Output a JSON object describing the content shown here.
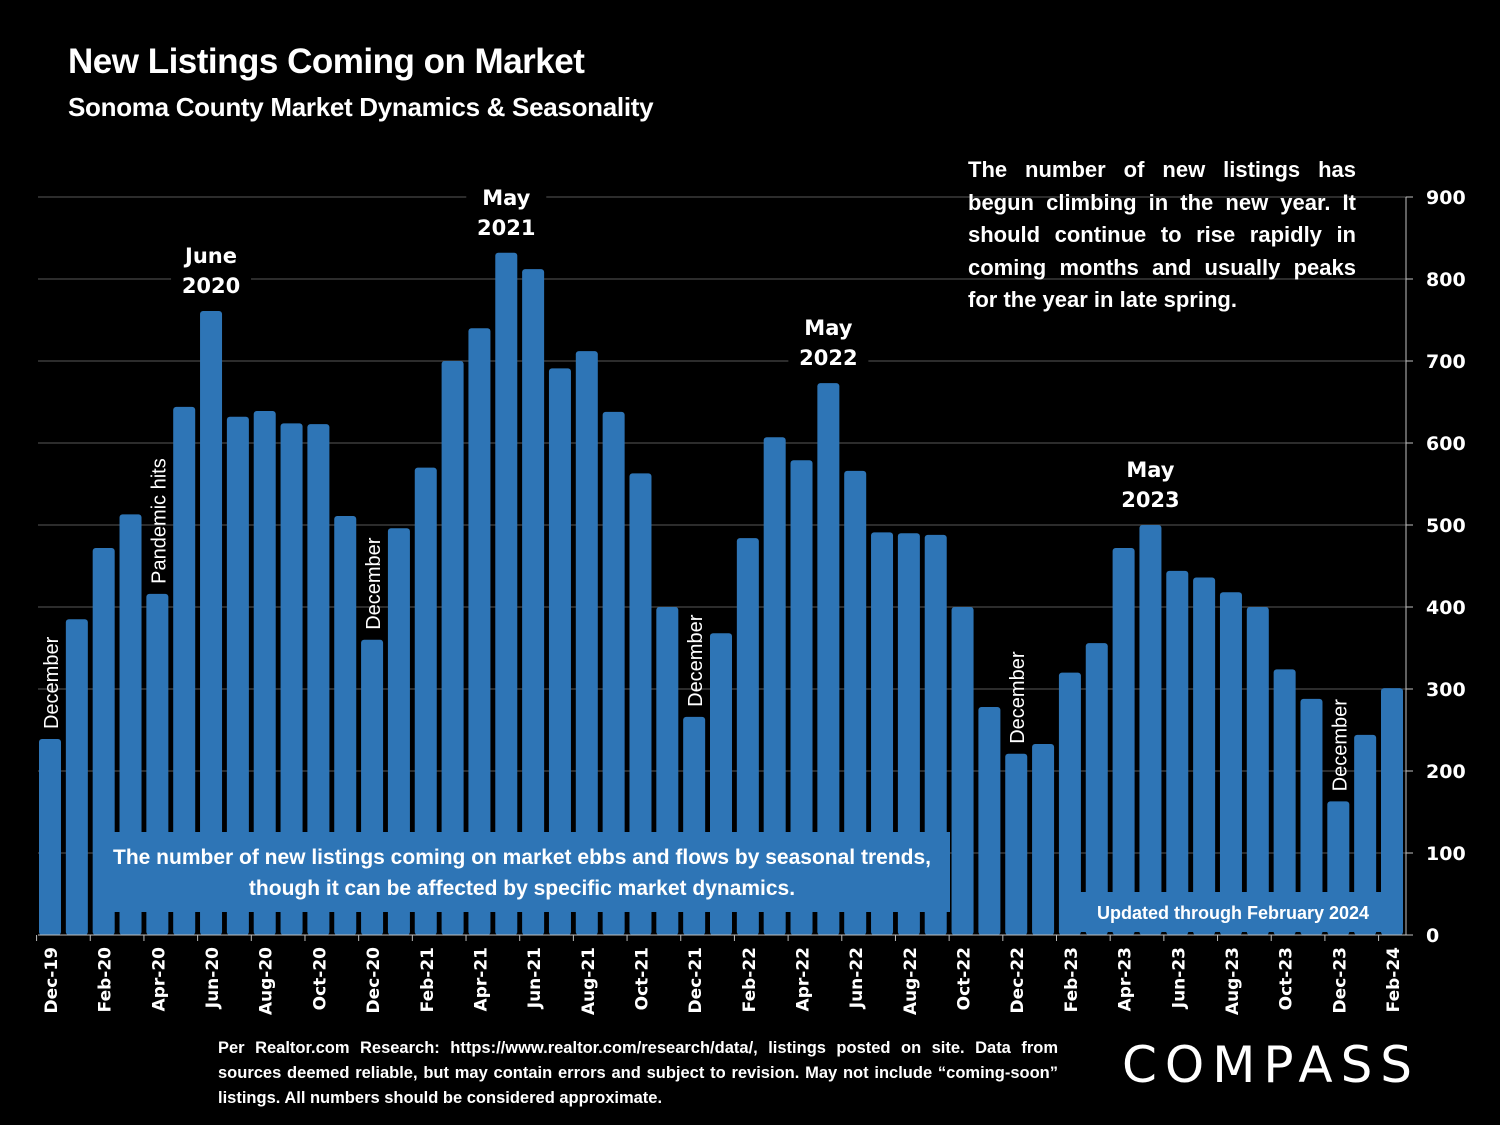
{
  "header": {
    "title": "New Listings Coming on Market",
    "subtitle": "Sonoma County Market Dynamics & Seasonality"
  },
  "annotations": {
    "top_right_note": "The number of new listings has begun climbing in the new year. It should continue to rise rapidly in coming months and usually peaks for the year in late spring.",
    "bottom_note": "The number of new listings coming on market ebbs and flows by seasonal trends, though it can be affected by specific market dynamics.",
    "updated_note": "Updated through February 2024"
  },
  "footer": {
    "source_text": "Per Realtor.com Research:  https://www.realtor.com/research/data/, listings posted on site. Data from sources deemed reliable, but may contain errors and subject to revision. May not include “coming-soon” listings. All numbers should be considered approximate.",
    "logo_text": "COMPASS"
  },
  "colors": {
    "background": "#000000",
    "bar": "#2E75B6",
    "text": "#FFFFFF",
    "gridline": "#595959"
  },
  "chart_data": {
    "type": "bar",
    "title": "New Listings Coming on Market",
    "subtitle": "Sonoma County Market Dynamics & Seasonality",
    "xlabel": "",
    "ylabel": "",
    "ylim": [
      0,
      900
    ],
    "y_ticks": [
      0,
      100,
      200,
      300,
      400,
      500,
      600,
      700,
      800,
      900
    ],
    "y_axis_side": "right",
    "grid": true,
    "categories": [
      "Dec-19",
      "Jan-20",
      "Feb-20",
      "Mar-20",
      "Apr-20",
      "May-20",
      "Jun-20",
      "Jul-20",
      "Aug-20",
      "Sep-20",
      "Oct-20",
      "Nov-20",
      "Dec-20",
      "Jan-21",
      "Feb-21",
      "Mar-21",
      "Apr-21",
      "May-21",
      "Jun-21",
      "Jul-21",
      "Aug-21",
      "Sep-21",
      "Oct-21",
      "Nov-21",
      "Dec-21",
      "Jan-22",
      "Feb-22",
      "Mar-22",
      "Apr-22",
      "May-22",
      "Jun-22",
      "Jul-22",
      "Aug-22",
      "Sep-22",
      "Oct-22",
      "Nov-22",
      "Dec-22",
      "Jan-23",
      "Feb-23",
      "Mar-23",
      "Apr-23",
      "May-23",
      "Jun-23",
      "Jul-23",
      "Aug-23",
      "Sep-23",
      "Oct-23",
      "Nov-23",
      "Dec-23",
      "Jan-24",
      "Feb-24"
    ],
    "x_tick_labels_shown": [
      "Dec-19",
      "Feb-20",
      "Apr-20",
      "Jun-20",
      "Aug-20",
      "Oct-20",
      "Dec-20",
      "Feb-21",
      "Apr-21",
      "Jun-21",
      "Aug-21",
      "Oct-21",
      "Dec-21",
      "Feb-22",
      "Apr-22",
      "Jun-22",
      "Aug-22",
      "Oct-22",
      "Dec-22",
      "Feb-23",
      "Apr-23",
      "Jun-23",
      "Aug-23",
      "Oct-23",
      "Dec-23",
      "Feb-24"
    ],
    "values": [
      239,
      385,
      472,
      513,
      416,
      644,
      761,
      632,
      639,
      624,
      623,
      511,
      360,
      496,
      570,
      700,
      740,
      832,
      812,
      691,
      712,
      638,
      563,
      400,
      266,
      368,
      484,
      607,
      579,
      673,
      566,
      491,
      490,
      488,
      400,
      278,
      221,
      233,
      320,
      356,
      472,
      500,
      444,
      436,
      418,
      400,
      324,
      288,
      163,
      244,
      301
    ],
    "bar_annotations": [
      {
        "category": "Dec-19",
        "text": "December",
        "orientation": "vertical"
      },
      {
        "category": "Apr-20",
        "text": "Pandemic hits",
        "orientation": "vertical"
      },
      {
        "category": "Jun-20",
        "text": "June\n2020",
        "orientation": "horizontal"
      },
      {
        "category": "Dec-20",
        "text": "December",
        "orientation": "vertical"
      },
      {
        "category": "May-21",
        "text": "May\n2021",
        "orientation": "horizontal"
      },
      {
        "category": "Dec-21",
        "text": "December",
        "orientation": "vertical"
      },
      {
        "category": "May-22",
        "text": "May\n2022",
        "orientation": "horizontal"
      },
      {
        "category": "Dec-22",
        "text": "December",
        "orientation": "vertical"
      },
      {
        "category": "May-23",
        "text": "May\n2023",
        "orientation": "horizontal"
      },
      {
        "category": "Dec-23",
        "text": "December",
        "orientation": "vertical"
      }
    ]
  }
}
